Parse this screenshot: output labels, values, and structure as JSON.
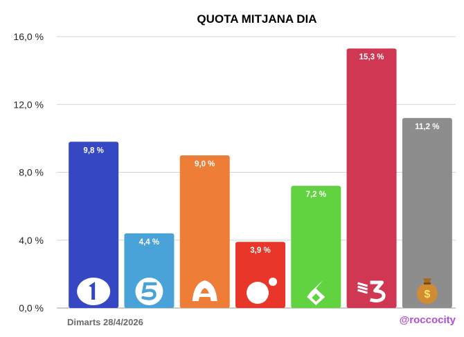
{
  "chart_data": {
    "type": "bar",
    "title": "QUOTA MITJANA DIA",
    "categories": [
      "La 1",
      "Telecinco",
      "Antena 3",
      "Cuatro",
      "laSexta",
      "TV3",
      "Others"
    ],
    "values": [
      9.8,
      4.4,
      9.0,
      3.9,
      7.2,
      15.3,
      11.2
    ],
    "data_labels": [
      "9,8 %",
      "4,4 %",
      "9,0 %",
      "3,9 %",
      "7,2 %",
      "15,3 %",
      "11,2 %"
    ],
    "ylim": [
      0,
      16
    ],
    "yticks": [
      0,
      4,
      8,
      12,
      16
    ],
    "ytick_labels": [
      "0,0 %",
      "4,0 %",
      "8,0 %",
      "12,0 %",
      "16,0 %"
    ],
    "grid": true,
    "colors": [
      "#3547c2",
      "#4aa3d8",
      "#ee7d38",
      "#e8372a",
      "#62d340",
      "#cf3752",
      "#8d8d8d"
    ],
    "icons": [
      "la1-logo-icon",
      "telecinco-logo-icon",
      "antena3-logo-icon",
      "cuatro-logo-icon",
      "lasexta-logo-icon",
      "tv3-logo-icon",
      "money-bag-icon"
    ]
  },
  "footer": {
    "date": "Dimarts 28/4/2026",
    "handle": "@roccocity"
  }
}
